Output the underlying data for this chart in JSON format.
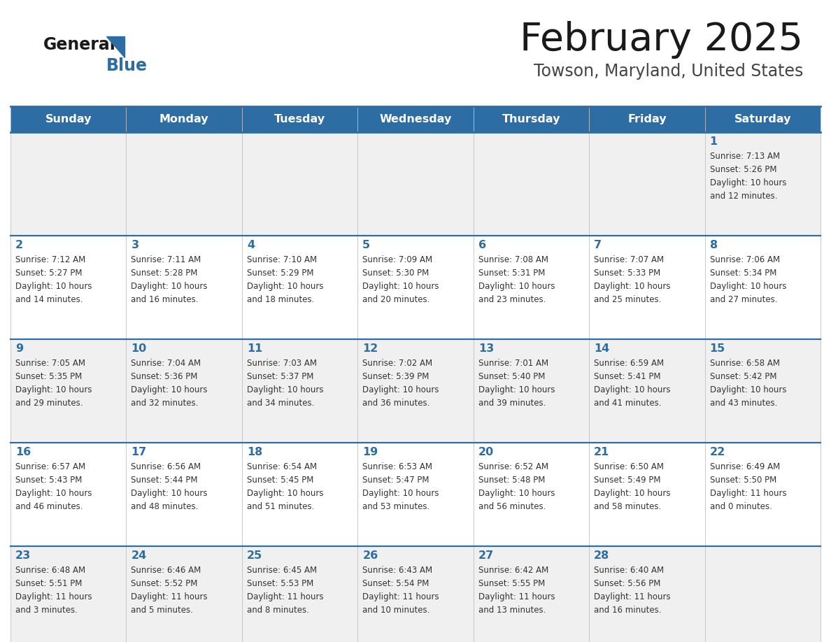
{
  "title": "February 2025",
  "subtitle": "Towson, Maryland, United States",
  "header_bg": "#2e6da4",
  "header_text": "#ffffff",
  "row0_bg": "#f0f0f0",
  "row1_bg": "#ffffff",
  "border_color": "#2e6da4",
  "cell_border_color": "#c0c0c0",
  "day_headers": [
    "Sunday",
    "Monday",
    "Tuesday",
    "Wednesday",
    "Thursday",
    "Friday",
    "Saturday"
  ],
  "title_color": "#1a1a1a",
  "subtitle_color": "#444444",
  "day_num_color": "#2e6da4",
  "cell_text_color": "#333333",
  "logo_general_color": "#1a1a1a",
  "logo_blue_color": "#2e6da4",
  "logo_triangle_color": "#2e6da4",
  "days": [
    {
      "day": 1,
      "col": 6,
      "row": 0,
      "sunrise": "7:13 AM",
      "sunset": "5:26 PM",
      "daylight_hours": 10,
      "daylight_minutes": 12
    },
    {
      "day": 2,
      "col": 0,
      "row": 1,
      "sunrise": "7:12 AM",
      "sunset": "5:27 PM",
      "daylight_hours": 10,
      "daylight_minutes": 14
    },
    {
      "day": 3,
      "col": 1,
      "row": 1,
      "sunrise": "7:11 AM",
      "sunset": "5:28 PM",
      "daylight_hours": 10,
      "daylight_minutes": 16
    },
    {
      "day": 4,
      "col": 2,
      "row": 1,
      "sunrise": "7:10 AM",
      "sunset": "5:29 PM",
      "daylight_hours": 10,
      "daylight_minutes": 18
    },
    {
      "day": 5,
      "col": 3,
      "row": 1,
      "sunrise": "7:09 AM",
      "sunset": "5:30 PM",
      "daylight_hours": 10,
      "daylight_minutes": 20
    },
    {
      "day": 6,
      "col": 4,
      "row": 1,
      "sunrise": "7:08 AM",
      "sunset": "5:31 PM",
      "daylight_hours": 10,
      "daylight_minutes": 23
    },
    {
      "day": 7,
      "col": 5,
      "row": 1,
      "sunrise": "7:07 AM",
      "sunset": "5:33 PM",
      "daylight_hours": 10,
      "daylight_minutes": 25
    },
    {
      "day": 8,
      "col": 6,
      "row": 1,
      "sunrise": "7:06 AM",
      "sunset": "5:34 PM",
      "daylight_hours": 10,
      "daylight_minutes": 27
    },
    {
      "day": 9,
      "col": 0,
      "row": 2,
      "sunrise": "7:05 AM",
      "sunset": "5:35 PM",
      "daylight_hours": 10,
      "daylight_minutes": 29
    },
    {
      "day": 10,
      "col": 1,
      "row": 2,
      "sunrise": "7:04 AM",
      "sunset": "5:36 PM",
      "daylight_hours": 10,
      "daylight_minutes": 32
    },
    {
      "day": 11,
      "col": 2,
      "row": 2,
      "sunrise": "7:03 AM",
      "sunset": "5:37 PM",
      "daylight_hours": 10,
      "daylight_minutes": 34
    },
    {
      "day": 12,
      "col": 3,
      "row": 2,
      "sunrise": "7:02 AM",
      "sunset": "5:39 PM",
      "daylight_hours": 10,
      "daylight_minutes": 36
    },
    {
      "day": 13,
      "col": 4,
      "row": 2,
      "sunrise": "7:01 AM",
      "sunset": "5:40 PM",
      "daylight_hours": 10,
      "daylight_minutes": 39
    },
    {
      "day": 14,
      "col": 5,
      "row": 2,
      "sunrise": "6:59 AM",
      "sunset": "5:41 PM",
      "daylight_hours": 10,
      "daylight_minutes": 41
    },
    {
      "day": 15,
      "col": 6,
      "row": 2,
      "sunrise": "6:58 AM",
      "sunset": "5:42 PM",
      "daylight_hours": 10,
      "daylight_minutes": 43
    },
    {
      "day": 16,
      "col": 0,
      "row": 3,
      "sunrise": "6:57 AM",
      "sunset": "5:43 PM",
      "daylight_hours": 10,
      "daylight_minutes": 46
    },
    {
      "day": 17,
      "col": 1,
      "row": 3,
      "sunrise": "6:56 AM",
      "sunset": "5:44 PM",
      "daylight_hours": 10,
      "daylight_minutes": 48
    },
    {
      "day": 18,
      "col": 2,
      "row": 3,
      "sunrise": "6:54 AM",
      "sunset": "5:45 PM",
      "daylight_hours": 10,
      "daylight_minutes": 51
    },
    {
      "day": 19,
      "col": 3,
      "row": 3,
      "sunrise": "6:53 AM",
      "sunset": "5:47 PM",
      "daylight_hours": 10,
      "daylight_minutes": 53
    },
    {
      "day": 20,
      "col": 4,
      "row": 3,
      "sunrise": "6:52 AM",
      "sunset": "5:48 PM",
      "daylight_hours": 10,
      "daylight_minutes": 56
    },
    {
      "day": 21,
      "col": 5,
      "row": 3,
      "sunrise": "6:50 AM",
      "sunset": "5:49 PM",
      "daylight_hours": 10,
      "daylight_minutes": 58
    },
    {
      "day": 22,
      "col": 6,
      "row": 3,
      "sunrise": "6:49 AM",
      "sunset": "5:50 PM",
      "daylight_hours": 11,
      "daylight_minutes": 0
    },
    {
      "day": 23,
      "col": 0,
      "row": 4,
      "sunrise": "6:48 AM",
      "sunset": "5:51 PM",
      "daylight_hours": 11,
      "daylight_minutes": 3
    },
    {
      "day": 24,
      "col": 1,
      "row": 4,
      "sunrise": "6:46 AM",
      "sunset": "5:52 PM",
      "daylight_hours": 11,
      "daylight_minutes": 5
    },
    {
      "day": 25,
      "col": 2,
      "row": 4,
      "sunrise": "6:45 AM",
      "sunset": "5:53 PM",
      "daylight_hours": 11,
      "daylight_minutes": 8
    },
    {
      "day": 26,
      "col": 3,
      "row": 4,
      "sunrise": "6:43 AM",
      "sunset": "5:54 PM",
      "daylight_hours": 11,
      "daylight_minutes": 10
    },
    {
      "day": 27,
      "col": 4,
      "row": 4,
      "sunrise": "6:42 AM",
      "sunset": "5:55 PM",
      "daylight_hours": 11,
      "daylight_minutes": 13
    },
    {
      "day": 28,
      "col": 5,
      "row": 4,
      "sunrise": "6:40 AM",
      "sunset": "5:56 PM",
      "daylight_hours": 11,
      "daylight_minutes": 16
    }
  ]
}
